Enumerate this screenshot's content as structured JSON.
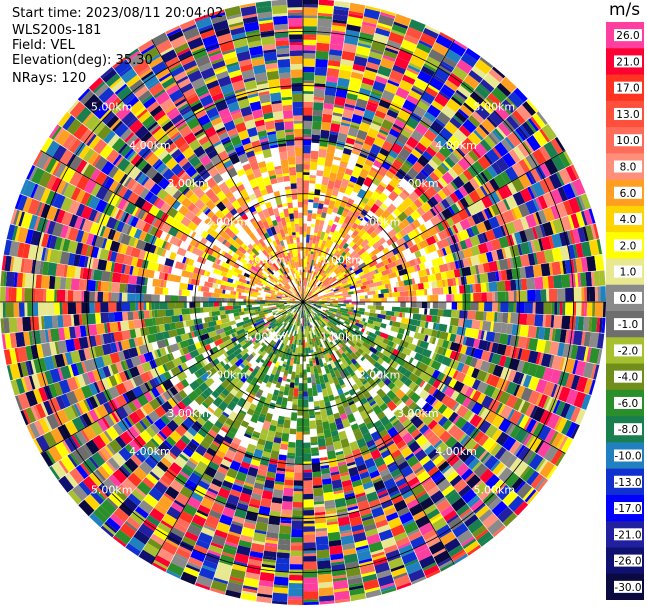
{
  "header": {
    "start_time": "Start time: 2023/08/11 20:04:02",
    "instrument": "WLS200s-181",
    "field": "Field: VEL",
    "elevation": "Elevation(deg): 35.30",
    "nrays": "NRays: 120"
  },
  "colorbar": {
    "unit": "m/s",
    "ticks": [
      "26.0",
      "21.0",
      "17.0",
      "13.0",
      "10.0",
      "8.0",
      "6.0",
      "4.0",
      "2.0",
      "1.0",
      "0.0",
      "-1.0",
      "-2.0",
      "-4.0",
      "-6.0",
      "-8.0",
      "-10.0",
      "-13.0",
      "-17.0",
      "-21.0",
      "-26.0",
      "-30.0"
    ],
    "colors": [
      "#ff3fa0",
      "#ff0033",
      "#ff3322",
      "#ff4f3d",
      "#ff6d5a",
      "#ff8f7a",
      "#ff9f22",
      "#ffd400",
      "#ffff00",
      "#e8e890",
      "#8a8a8a",
      "#6e6e6e",
      "#a6c030",
      "#6f8f1a",
      "#2a8f2a",
      "#1a7f4f",
      "#2080c0",
      "#1030d0",
      "#0000ff",
      "#2020a0",
      "#101070",
      "#0a0a40"
    ]
  },
  "chart_data": {
    "type": "heatmap",
    "title": "",
    "field": "VEL",
    "units": "m/s",
    "elevation_deg": 35.3,
    "nrays": 120,
    "range_rings": [
      "1.00km",
      "2.00km",
      "3.00km",
      "4.00km",
      "5.00km"
    ],
    "range_ring_values_km": [
      1,
      2,
      3,
      4,
      5
    ],
    "max_range_km": 5.6,
    "color_levels": [
      -30,
      -26,
      -21,
      -17,
      -13,
      -10,
      -8,
      -6,
      -4,
      -2,
      -1,
      0,
      1,
      2,
      4,
      6,
      8,
      10,
      13,
      17,
      21,
      26
    ]
  }
}
